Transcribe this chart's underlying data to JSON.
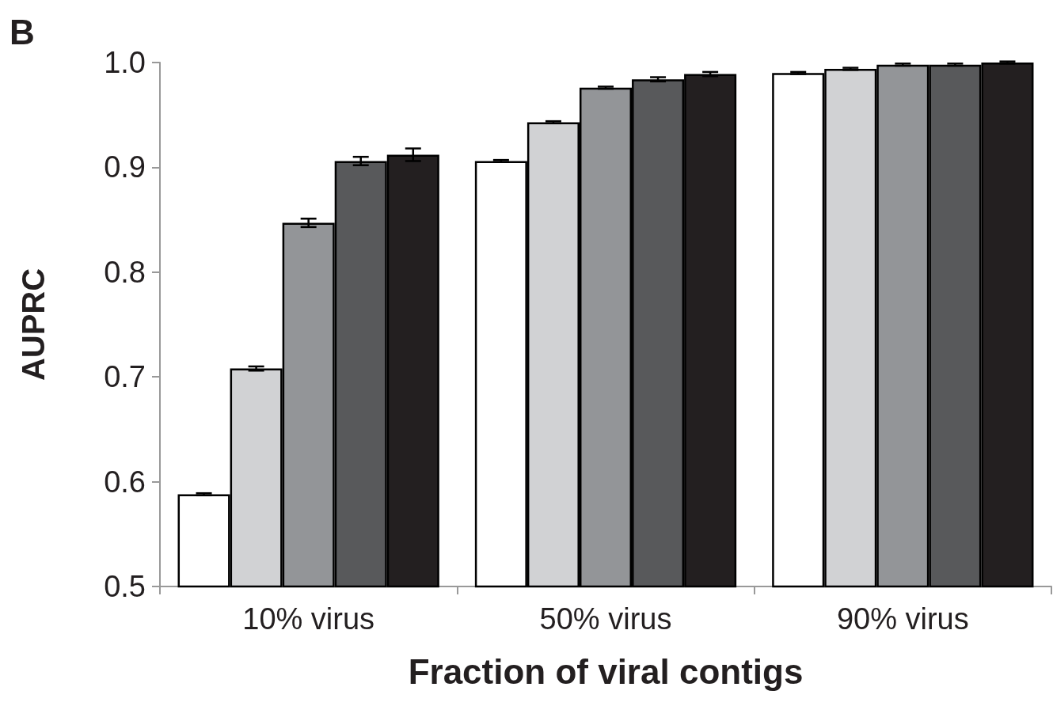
{
  "chart_data": {
    "type": "bar",
    "xlabel": "Fraction of viral contigs",
    "ylabel": "AUPRC",
    "annotations": [
      "B"
    ],
    "categories": [
      "10% virus",
      "50% virus",
      "90% virus"
    ],
    "ylim": [
      0.5,
      1.0
    ],
    "yticks": [
      0.5,
      0.6,
      0.7,
      0.8,
      0.9,
      {
        "value": 1,
        "label": "1.0"
      }
    ],
    "grid": false,
    "series": [
      {
        "color": "#ffffff",
        "values": [
          0.588,
          0.906,
          0.99
        ],
        "errors": [
          0.001,
          0.001,
          0.001
        ]
      },
      {
        "color": "#d1d2d4",
        "values": [
          0.708,
          0.943,
          0.994
        ],
        "errors": [
          0.002,
          0.001,
          0.001
        ]
      },
      {
        "color": "#939598",
        "values": [
          0.847,
          0.976,
          0.998
        ],
        "errors": [
          0.004,
          0.001,
          0.001
        ]
      },
      {
        "color": "#58595b",
        "values": [
          0.906,
          0.984,
          0.998
        ],
        "errors": [
          0.004,
          0.002,
          0.001
        ]
      },
      {
        "color": "#231f20",
        "values": [
          0.912,
          0.989,
          1.0
        ],
        "errors": [
          0.006,
          0.002,
          0.001
        ]
      }
    ]
  }
}
